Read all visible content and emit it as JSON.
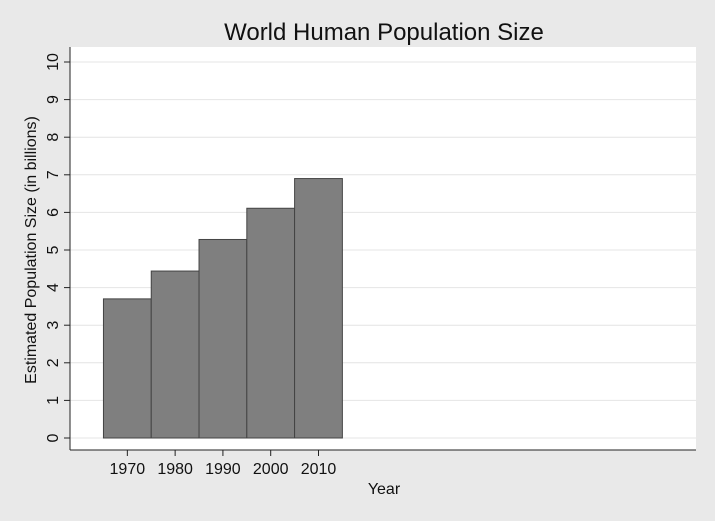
{
  "chart_data": {
    "type": "bar",
    "title": "World Human Population Size",
    "xlabel": "Year",
    "ylabel": "Estimated Population Size (in billions)",
    "categories": [
      "1970",
      "1980",
      "1990",
      "2000",
      "2010"
    ],
    "x": [
      1970,
      1980,
      1990,
      2000,
      2010
    ],
    "values": [
      3.7,
      4.44,
      5.28,
      6.11,
      6.9
    ],
    "bar_width": 10,
    "xlim": [
      1958,
      2089
    ],
    "ylim": [
      0,
      10
    ],
    "yticks": [
      0,
      1,
      2,
      3,
      4,
      5,
      6,
      7,
      8,
      9,
      10
    ],
    "xticks": [
      1970,
      1980,
      1990,
      2000,
      2010
    ],
    "grid": true,
    "legend": "none",
    "colors": {
      "bar_fill": "#7f7f7f",
      "bar_stroke": "#444444",
      "plot_bg": "#ffffff",
      "outer_bg": "#e9e9e9",
      "grid": "#e4e4e4"
    }
  }
}
